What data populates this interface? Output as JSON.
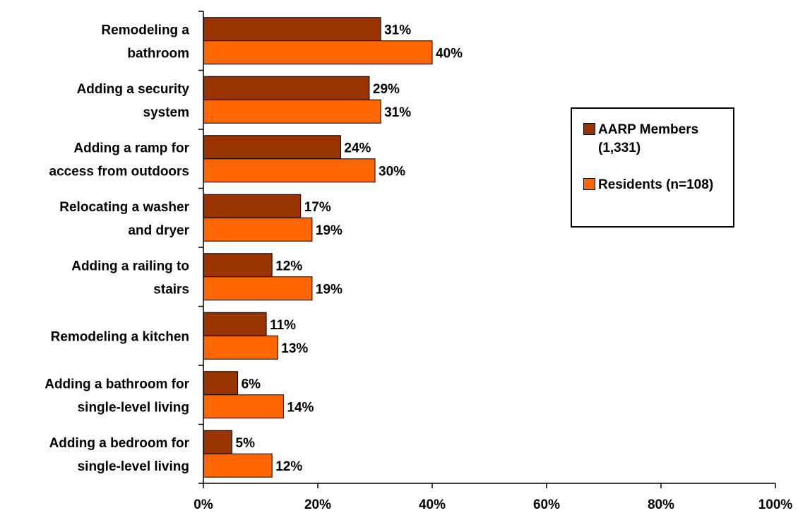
{
  "chart_data": {
    "type": "bar",
    "orientation": "horizontal",
    "categories": [
      [
        "Remodeling a",
        "bathroom"
      ],
      [
        "Adding a security",
        "system"
      ],
      [
        "Adding a ramp for",
        "access from outdoors"
      ],
      [
        "Relocating a washer",
        "and dryer"
      ],
      [
        "Adding a railing to",
        "stairs"
      ],
      [
        "Remodeling a kitchen"
      ],
      [
        "Adding a bathroom for",
        "single-level living"
      ],
      [
        "Adding a bedroom for",
        "single-level living"
      ]
    ],
    "series": [
      {
        "name": "AARP Members (1,331)",
        "color": "#993300",
        "values": [
          31,
          29,
          24,
          17,
          12,
          11,
          6,
          5
        ],
        "labels": [
          "31%",
          "29%",
          "24%",
          "17%",
          "12%",
          "11%",
          "6%",
          "5%"
        ]
      },
      {
        "name": "Residents (n=108)",
        "color": "#FF6600",
        "values": [
          40,
          31,
          30,
          19,
          19,
          13,
          14,
          12
        ],
        "labels": [
          "40%",
          "31%",
          "30%",
          "19%",
          "19%",
          "13%",
          "14%",
          "12%"
        ]
      }
    ],
    "xlim": [
      0,
      100
    ],
    "xticks": [
      "0%",
      "20%",
      "40%",
      "60%",
      "80%",
      "100%"
    ],
    "grid": false,
    "legend_position": "right"
  },
  "legend": {
    "items": [
      {
        "label": "AARP Members (1,331)",
        "color": "#993300"
      },
      {
        "label": "Residents (n=108)",
        "color": "#FF6600"
      }
    ]
  }
}
